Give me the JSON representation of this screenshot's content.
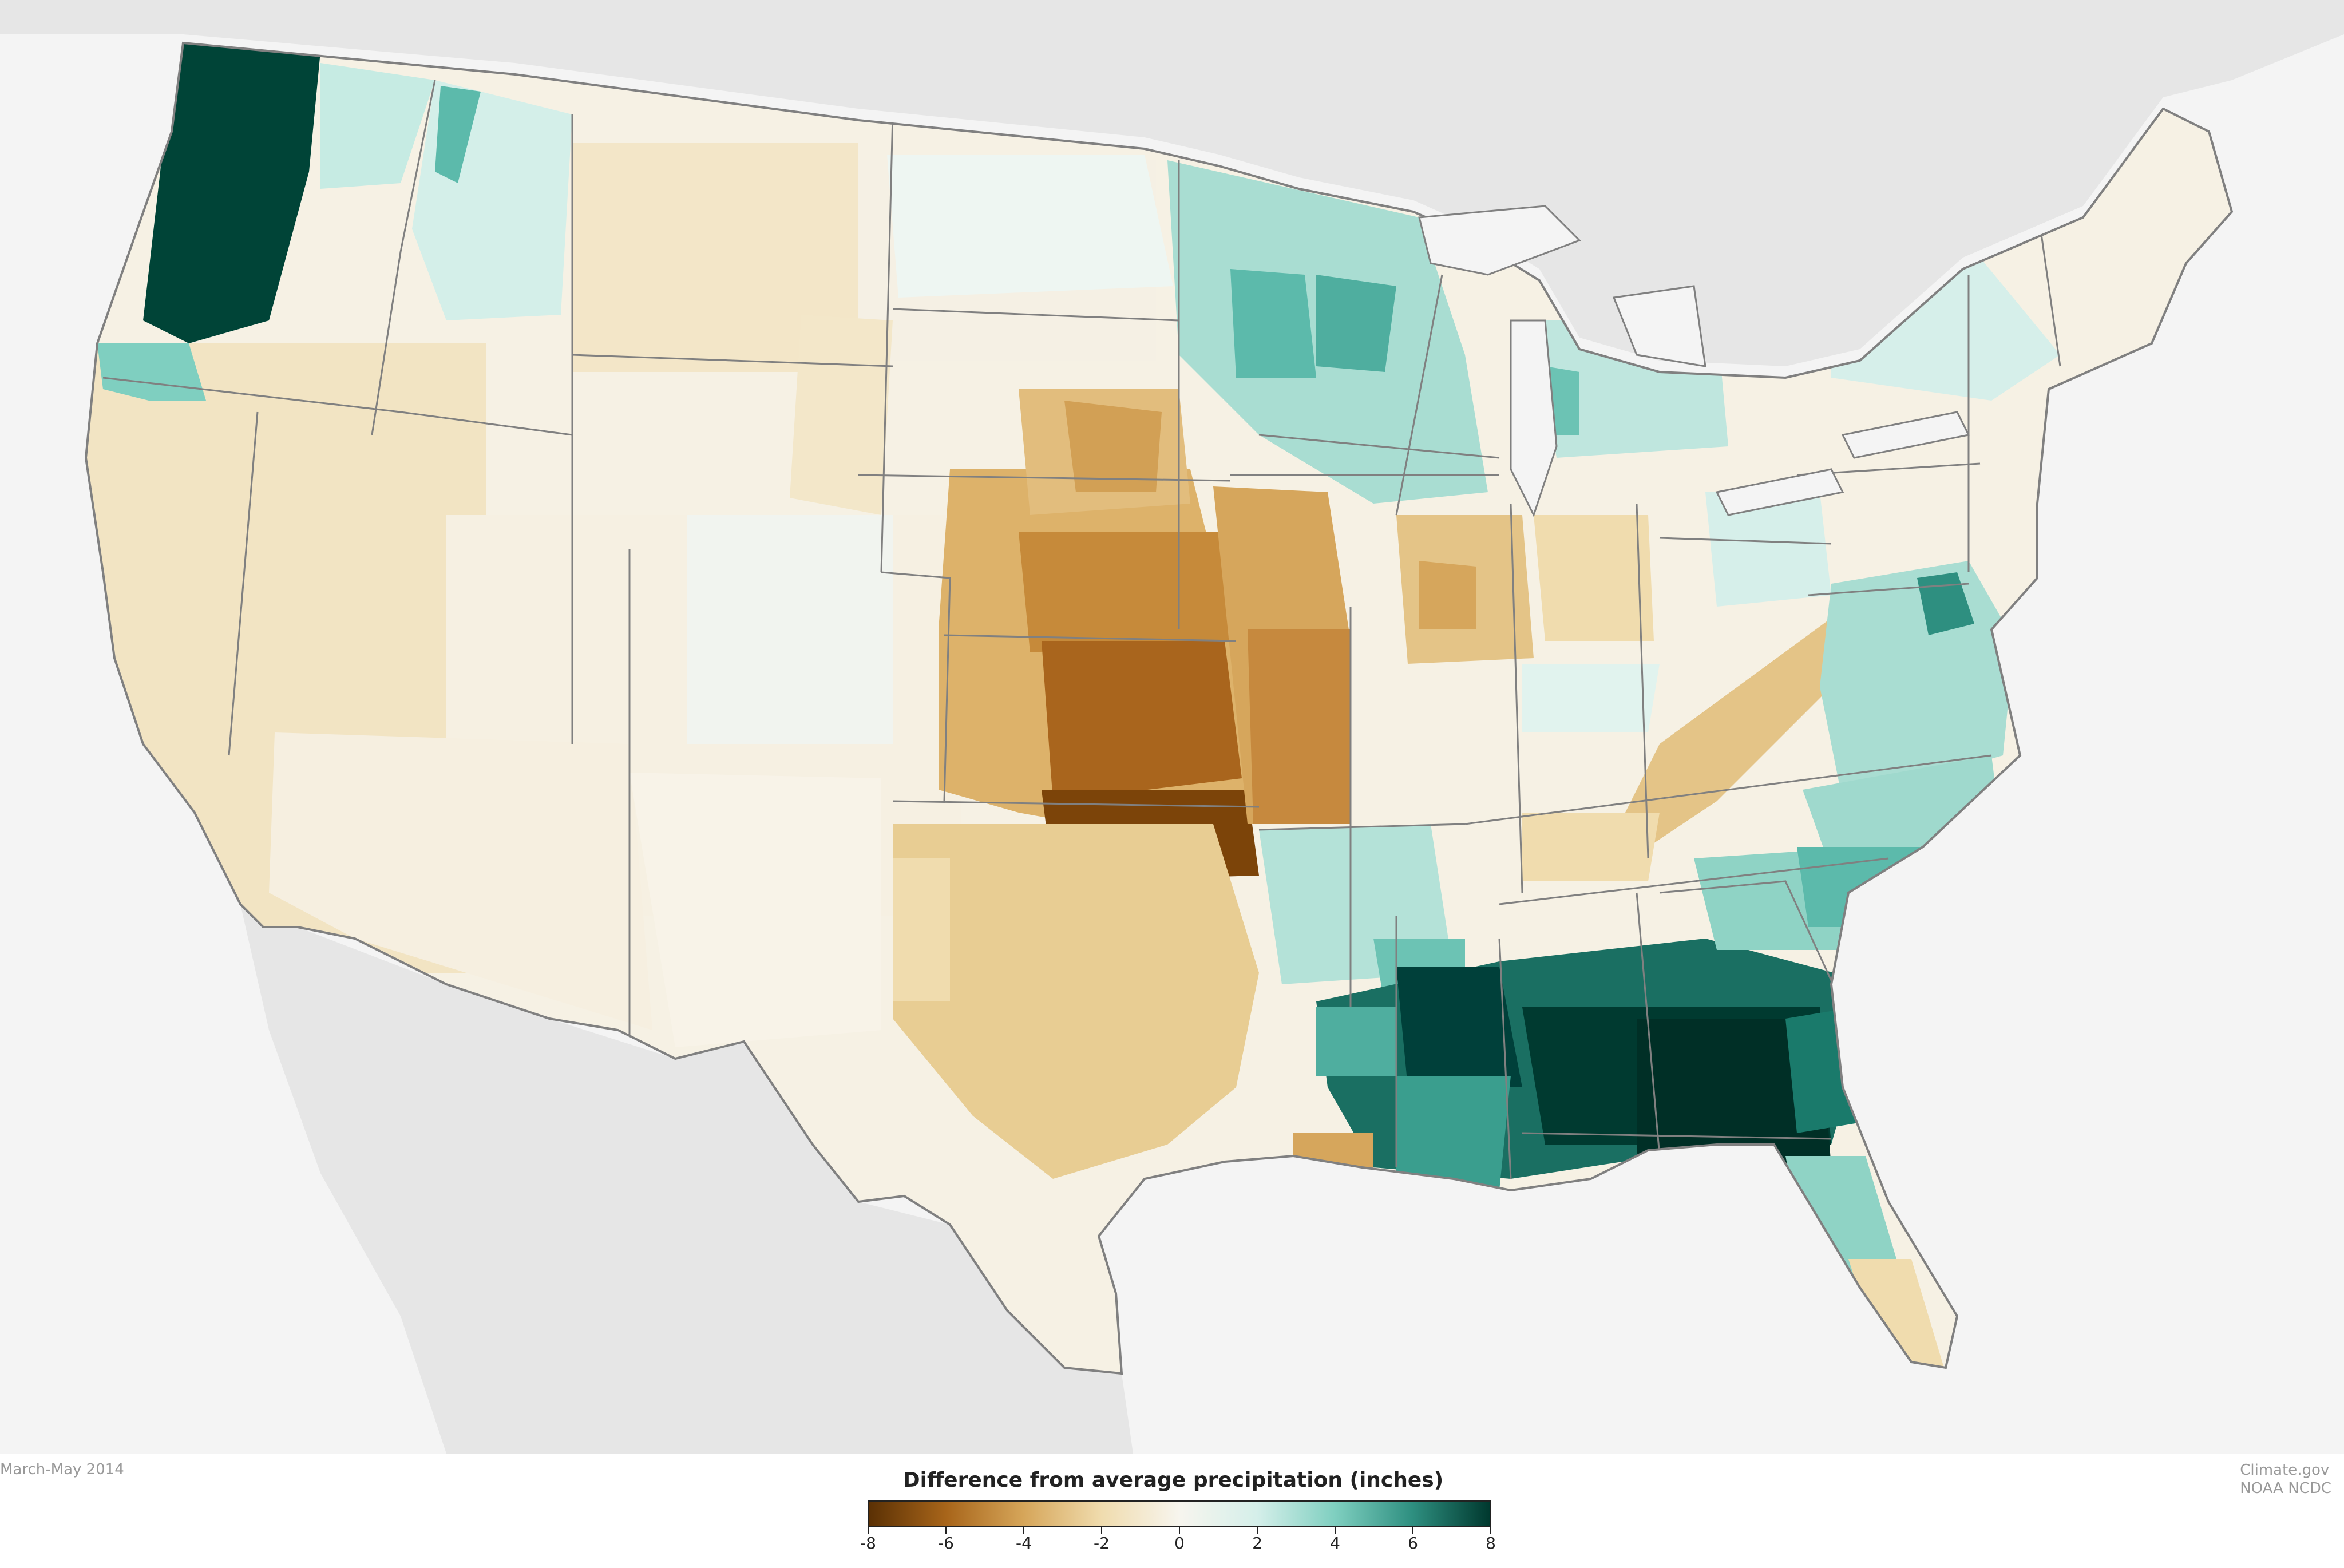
{
  "footer": {
    "period": "March-May 2014",
    "credit_line1": "Climate.gov",
    "credit_line2": "NOAA NCDC"
  },
  "legend": {
    "title": "Difference from average precipitation (inches)",
    "ticks": [
      "-8",
      "-6",
      "-4",
      "-2",
      "0",
      "2",
      "4",
      "6",
      "8"
    ],
    "min": -8,
    "max": 8,
    "colors": [
      "#6b3a05",
      "#a8651a",
      "#d6a65a",
      "#f0dcae",
      "#f7f3e8",
      "#d5efea",
      "#7fcfc0",
      "#2e8f80",
      "#00382e"
    ]
  },
  "colors": {
    "ocean": "#f4f4f4",
    "land_outside": "#e6e6e6",
    "state_border": "#808080"
  }
}
